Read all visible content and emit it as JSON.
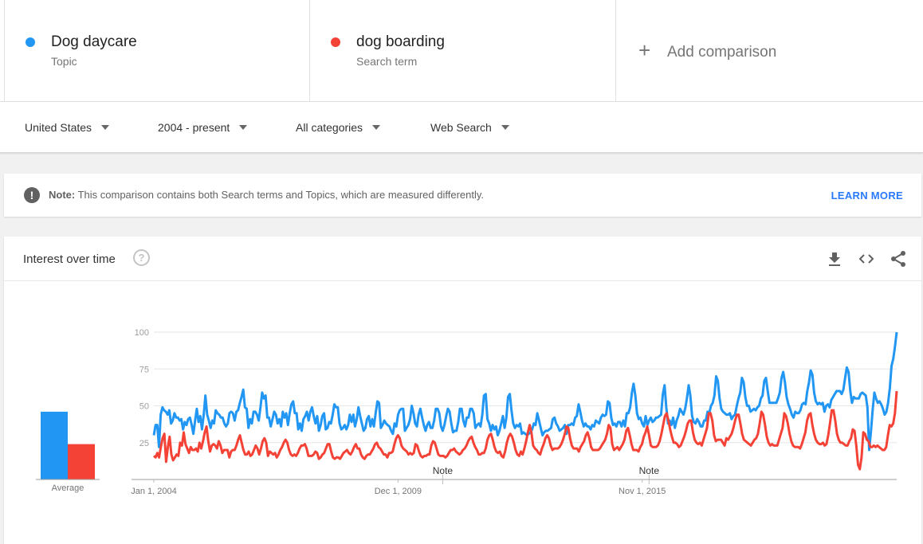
{
  "terms": [
    {
      "name": "Dog daycare",
      "type": "Topic",
      "color": "#2196f3"
    },
    {
      "name": "dog boarding",
      "type": "Search term",
      "color": "#f44336"
    }
  ],
  "add_comparison": {
    "label": "Add comparison",
    "icon": "plus-icon"
  },
  "filters": {
    "region": "United States",
    "time": "2004 - present",
    "category": "All categories",
    "property": "Web Search"
  },
  "note": {
    "prefix": "Note:",
    "text": " This comparison contains both Search terms and Topics, which are measured differently.",
    "link": "LEARN MORE",
    "icon": "alert-icon"
  },
  "card": {
    "title": "Interest over time",
    "help_icon": "help-icon",
    "actions": [
      "download-icon",
      "embed-code-icon",
      "share-icon"
    ]
  },
  "chart_data": {
    "type": "line",
    "xlabel": "",
    "ylabel": "",
    "ylim": [
      0,
      100
    ],
    "yticks": [
      "25",
      "50",
      "75",
      "100"
    ],
    "x_tick_labels": [
      {
        "label": "Jan 1, 2004",
        "x": 2004.0
      },
      {
        "label": "Dec 1, 2009",
        "x": 2009.917
      },
      {
        "label": "Nov 1, 2015",
        "x": 2015.833
      }
    ],
    "annotations": [
      {
        "label": "Note",
        "x": 2011.0
      },
      {
        "label": "Note",
        "x": 2016.0
      }
    ],
    "x_start": 2004.0,
    "x_end": 2022.0,
    "grid": true,
    "series": [
      {
        "name": "Dog daycare",
        "color": "#2196f3",
        "average": 46,
        "values": [
          30,
          37,
          37,
          22,
          44,
          49,
          47,
          46,
          44,
          47,
          38,
          40,
          45,
          42,
          42,
          40,
          41,
          34,
          39,
          37,
          41,
          42,
          37,
          31,
          40,
          48,
          39,
          43,
          34,
          44,
          57,
          44,
          40,
          35,
          40,
          38,
          47,
          45,
          44,
          42,
          42,
          38,
          36,
          38,
          45,
          46,
          45,
          40,
          46,
          47,
          52,
          56,
          61,
          49,
          48,
          35,
          41,
          38,
          46,
          46,
          44,
          40,
          49,
          59,
          55,
          57,
          42,
          42,
          36,
          41,
          46,
          44,
          38,
          41,
          36,
          46,
          42,
          45,
          37,
          45,
          51,
          53,
          45,
          45,
          34,
          38,
          33,
          41,
          43,
          46,
          40,
          46,
          49,
          43,
          38,
          43,
          33,
          37,
          43,
          45,
          34,
          35,
          39,
          38,
          44,
          51,
          49,
          49,
          38,
          34,
          35,
          37,
          34,
          37,
          44,
          39,
          44,
          36,
          41,
          49,
          43,
          38,
          33,
          35,
          41,
          43,
          36,
          41,
          36,
          45,
          53,
          52,
          35,
          37,
          40,
          38,
          37,
          36,
          33,
          31,
          38,
          36,
          44,
          47,
          48,
          48,
          33,
          35,
          37,
          41,
          50,
          45,
          38,
          36,
          44,
          48,
          42,
          37,
          33,
          37,
          39,
          35,
          35,
          40,
          48,
          48,
          45,
          36,
          33,
          37,
          43,
          48,
          46,
          38,
          32,
          33,
          33,
          39,
          48,
          48,
          40,
          36,
          42,
          42,
          48,
          48,
          45,
          35,
          37,
          38,
          36,
          44,
          57,
          58,
          41,
          38,
          33,
          37,
          34,
          36,
          30,
          33,
          38,
          43,
          35,
          42,
          56,
          58,
          47,
          38,
          35,
          37,
          36,
          38,
          31,
          32,
          31,
          30,
          31,
          32,
          34,
          38,
          37,
          45,
          40,
          35,
          30,
          32,
          33,
          33,
          34,
          35,
          41,
          42,
          38,
          36,
          33,
          34,
          35,
          37,
          31,
          37,
          37,
          38,
          37,
          42,
          43,
          51,
          46,
          40,
          36,
          38,
          36,
          36,
          34,
          37,
          36,
          40,
          39,
          38,
          42,
          44,
          43,
          44,
          53,
          52,
          42,
          37,
          38,
          36,
          39,
          39,
          36,
          40,
          36,
          45,
          45,
          49,
          59,
          65,
          57,
          45,
          41,
          42,
          38,
          36,
          43,
          37,
          40,
          42,
          39,
          40,
          42,
          42,
          43,
          44,
          58,
          64,
          49,
          38,
          40,
          37,
          42,
          35,
          40,
          43,
          48,
          46,
          44,
          48,
          55,
          64,
          57,
          43,
          39,
          38,
          41,
          39,
          36,
          36,
          40,
          40,
          46,
          45,
          50,
          52,
          57,
          70,
          67,
          55,
          48,
          46,
          45,
          44,
          44,
          45,
          41,
          43,
          44,
          50,
          55,
          59,
          69,
          66,
          56,
          50,
          50,
          46,
          47,
          48,
          47,
          49,
          50,
          55,
          57,
          67,
          69,
          60,
          52,
          52,
          52,
          52,
          52,
          55,
          59,
          69,
          73,
          66,
          56,
          51,
          48,
          44,
          42,
          46,
          45,
          45,
          47,
          51,
          52,
          51,
          60,
          66,
          74,
          71,
          59,
          53,
          51,
          52,
          51,
          52,
          46,
          50,
          51,
          49,
          54,
          56,
          58,
          60,
          60,
          60,
          58,
          61,
          69,
          76,
          73,
          60,
          52,
          56,
          55,
          55,
          55,
          58,
          59,
          58,
          57,
          49,
          20,
          32,
          47,
          59,
          55,
          52,
          53,
          51,
          48,
          44,
          46,
          52,
          62,
          77,
          82,
          90,
          100
        ]
      },
      {
        "name": "dog boarding",
        "color": "#f44336",
        "average": 24,
        "values": [
          16,
          15,
          18,
          15,
          22,
          28,
          31,
          12,
          22,
          29,
          17,
          13,
          15,
          17,
          16,
          25,
          23,
          32,
          24,
          21,
          18,
          22,
          20,
          20,
          21,
          19,
          25,
          21,
          26,
          32,
          36,
          26,
          19,
          23,
          24,
          23,
          21,
          26,
          23,
          18,
          20,
          20,
          20,
          15,
          19,
          20,
          20,
          23,
          27,
          30,
          25,
          20,
          17,
          17,
          19,
          16,
          17,
          20,
          23,
          21,
          17,
          21,
          26,
          28,
          25,
          16,
          19,
          18,
          17,
          18,
          15,
          17,
          20,
          22,
          25,
          27,
          25,
          20,
          17,
          16,
          17,
          16,
          18,
          21,
          23,
          23,
          24,
          21,
          16,
          16,
          16,
          17,
          19,
          18,
          14,
          15,
          17,
          18,
          21,
          24,
          24,
          19,
          15,
          14,
          15,
          15,
          14,
          16,
          18,
          19,
          20,
          18,
          17,
          19,
          22,
          24,
          21,
          21,
          17,
          15,
          14,
          16,
          17,
          17,
          19,
          21,
          24,
          25,
          22,
          21,
          19,
          17,
          17,
          15,
          18,
          18,
          19,
          24,
          28,
          30,
          28,
          23,
          21,
          20,
          19,
          17,
          18,
          17,
          18,
          24,
          23,
          19,
          16,
          15,
          16,
          16,
          17,
          17,
          23,
          26,
          25,
          21,
          17,
          16,
          16,
          16,
          15,
          16,
          18,
          20,
          20,
          21,
          19,
          18,
          17,
          18,
          20,
          21,
          23,
          26,
          28,
          29,
          25,
          22,
          20,
          17,
          17,
          18,
          18,
          21,
          27,
          30,
          31,
          27,
          22,
          19,
          18,
          19,
          16,
          15,
          19,
          25,
          29,
          31,
          29,
          25,
          20,
          17,
          16,
          19,
          17,
          21,
          26,
          32,
          37,
          32,
          23,
          21,
          20,
          18,
          17,
          21,
          24,
          28,
          30,
          28,
          23,
          20,
          21,
          21,
          21,
          22,
          24,
          27,
          31,
          36,
          35,
          28,
          23,
          21,
          21,
          21,
          19,
          22,
          24,
          26,
          30,
          32,
          28,
          22,
          20,
          20,
          20,
          20,
          21,
          23,
          25,
          27,
          31,
          37,
          35,
          24,
          20,
          21,
          22,
          20,
          22,
          24,
          27,
          33,
          35,
          30,
          24,
          20,
          20,
          20,
          19,
          22,
          24,
          29,
          32,
          36,
          30,
          23,
          22,
          22,
          22,
          23,
          26,
          31,
          37,
          43,
          45,
          40,
          34,
          29,
          25,
          25,
          24,
          22,
          23,
          26,
          29,
          33,
          38,
          40,
          40,
          32,
          27,
          25,
          24,
          25,
          23,
          27,
          31,
          35,
          45,
          45,
          40,
          30,
          26,
          27,
          27,
          27,
          25,
          23,
          28,
          27,
          29,
          31,
          35,
          40,
          44,
          44,
          38,
          31,
          27,
          26,
          25,
          24,
          23,
          25,
          27,
          28,
          31,
          38,
          46,
          44,
          37,
          29,
          25,
          23,
          24,
          23,
          23,
          23,
          27,
          31,
          35,
          45,
          43,
          38,
          31,
          26,
          23,
          22,
          22,
          22,
          21,
          24,
          28,
          32,
          40,
          44,
          45,
          37,
          31,
          27,
          25,
          24,
          24,
          25,
          23,
          24,
          30,
          38,
          47,
          47,
          40,
          31,
          27,
          25,
          25,
          24,
          23,
          23,
          26,
          28,
          34,
          33,
          23,
          10,
          7,
          15,
          32,
          31,
          27,
          26,
          22,
          22,
          23,
          22,
          23,
          22,
          21,
          20,
          20,
          22,
          30,
          37,
          36,
          38,
          45,
          60
        ]
      }
    ],
    "average_label": "Average"
  }
}
